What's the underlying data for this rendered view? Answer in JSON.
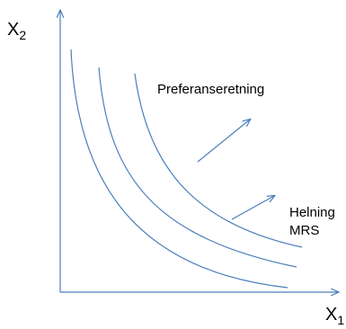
{
  "diagram": {
    "line_color": "#4a7ebb",
    "text_color": "#000000",
    "y_axis": {
      "label_main": "X",
      "label_sub": "2"
    },
    "x_axis": {
      "label_main": "X",
      "label_sub": "1"
    },
    "annotations": {
      "preference_direction": "Preferanseretning",
      "slope_line1": "Helning",
      "slope_line2": "MRS"
    },
    "curves": [
      {
        "name": "indifference-curve-1"
      },
      {
        "name": "indifference-curve-2"
      },
      {
        "name": "indifference-curve-3"
      }
    ]
  }
}
